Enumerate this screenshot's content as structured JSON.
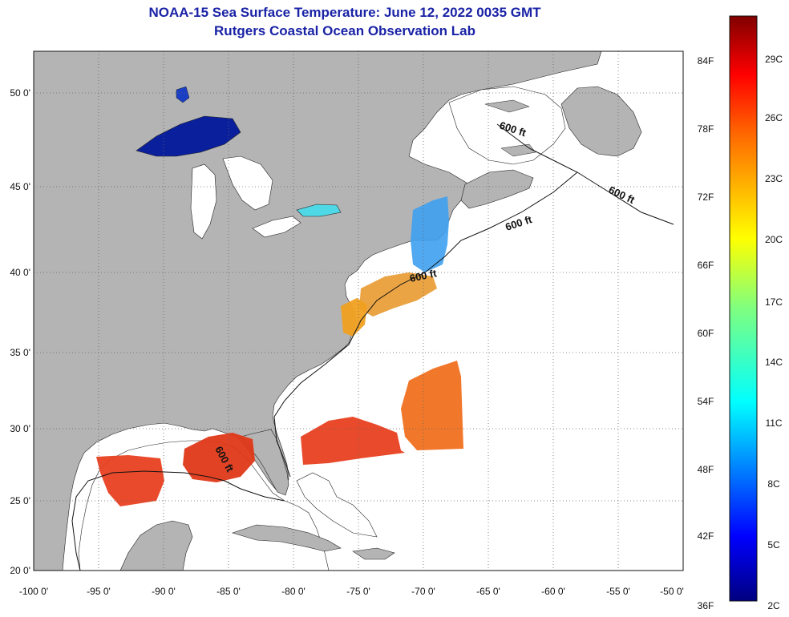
{
  "title": {
    "line1": "NOAA-15 Sea Surface Temperature:  June 12, 2022 0035 GMT",
    "line2": "Rutgers Coastal Ocean Observation Lab"
  },
  "map": {
    "lon_range": [
      -100,
      -50
    ],
    "lat_range": [
      20,
      52
    ],
    "lon_ticks": [
      "-100 0'",
      "-95 0'",
      "-90 0'",
      "-85 0'",
      "-80 0'",
      "-75 0'",
      "-70 0'",
      "-65 0'",
      "-60 0'",
      "-55 0'",
      "-50 0'"
    ],
    "lat_ticks": [
      "50 0'",
      "45 0'",
      "40 0'",
      "35 0'",
      "30 0'",
      "25 0'",
      "20 0'"
    ],
    "isobath_label": "600 ft",
    "colors": {
      "land": "#b4b4b4",
      "ocean": "#ffffff",
      "grid": "#666666"
    }
  },
  "colorbar": {
    "fahrenheit": [
      "84F",
      "78F",
      "72F",
      "66F",
      "60F",
      "54F",
      "48F",
      "42F",
      "36F"
    ],
    "celsius": [
      "29C",
      "26C",
      "23C",
      "20C",
      "17C",
      "14C",
      "11C",
      "8C",
      "5C",
      "2C"
    ],
    "range_c": [
      2,
      31
    ]
  }
}
